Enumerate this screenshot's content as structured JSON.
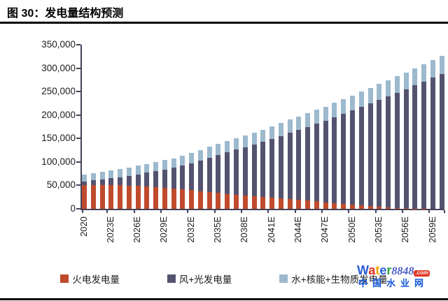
{
  "title": "图 30：发电量结构预测",
  "watermark": {
    "letters": [
      {
        "c": "W",
        "color": "#2b5bd7"
      },
      {
        "c": "a",
        "color": "#e0301e"
      },
      {
        "c": "t",
        "color": "#f2a900"
      },
      {
        "c": "e",
        "color": "#2b5bd7"
      },
      {
        "c": "r",
        "color": "#2e9e44"
      }
    ],
    "number": "8848",
    "number_color": "#4f5fc8",
    "tld": ".com",
    "site": "中国水业网",
    "site_color": "#1557d8"
  },
  "chart_data": {
    "type": "bar",
    "stacked": true,
    "grid": false,
    "legend_position": "bottom",
    "ylim": [
      0,
      350000
    ],
    "ytick_step": 50000,
    "ytick_labels": [
      "0",
      "50,000",
      "100,000",
      "150,000",
      "200,000",
      "250,000",
      "300,000",
      "350,000"
    ],
    "x_tick_labels": [
      "2020",
      "2023E",
      "2026E",
      "2029E",
      "2032E",
      "2035E",
      "2038E",
      "2041E",
      "2044E",
      "2047E",
      "2050E",
      "2053E",
      "2056E",
      "2059E"
    ],
    "x_tick_every": 3,
    "years": [
      2020,
      2021,
      2022,
      2023,
      2024,
      2025,
      2026,
      2027,
      2028,
      2029,
      2030,
      2031,
      2032,
      2033,
      2034,
      2035,
      2036,
      2037,
      2038,
      2039,
      2040,
      2041,
      2042,
      2043,
      2044,
      2045,
      2046,
      2047,
      2048,
      2049,
      2050,
      2051,
      2052,
      2053,
      2054,
      2055,
      2056,
      2057,
      2058,
      2059,
      2060
    ],
    "series": [
      {
        "name": "火电发电量",
        "color": "#bf4b2c",
        "values": [
          50000,
          50500,
          51000,
          51000,
          50500,
          49500,
          48500,
          47000,
          45500,
          44000,
          42500,
          41000,
          39500,
          38000,
          36000,
          34000,
          32000,
          30000,
          28500,
          27000,
          25500,
          24000,
          22500,
          21000,
          19500,
          18000,
          16000,
          14000,
          12000,
          10000,
          8500,
          7000,
          5500,
          4000,
          2500,
          1500,
          800,
          400,
          200,
          100,
          100
        ]
      },
      {
        "name": "风+光发电量",
        "color": "#54536f",
        "values": [
          8000,
          9900,
          11800,
          14300,
          17200,
          20600,
          25000,
          30000,
          34900,
          39800,
          44700,
          50700,
          57600,
          64500,
          72900,
          81400,
          88800,
          96200,
          103100,
          110100,
          117000,
          124900,
          132800,
          140800,
          148700,
          156600,
          165000,
          173500,
          182900,
          192300,
          201200,
          210200,
          219100,
          228000,
          236900,
          246400,
          254500,
          263300,
          270900,
          279500,
          287900
        ]
      },
      {
        "name": "水+核能+生物质发电量",
        "color": "#9cb9ce",
        "values": [
          15000,
          15600,
          16200,
          16700,
          17300,
          17900,
          18500,
          19000,
          19600,
          20200,
          20800,
          21300,
          21900,
          22500,
          23100,
          23600,
          24200,
          24800,
          25400,
          25900,
          26500,
          27100,
          27700,
          28200,
          28800,
          29400,
          30000,
          30500,
          31100,
          31700,
          32300,
          32800,
          33400,
          34000,
          34600,
          35100,
          35700,
          36300,
          36900,
          37400,
          38000
        ]
      }
    ]
  }
}
